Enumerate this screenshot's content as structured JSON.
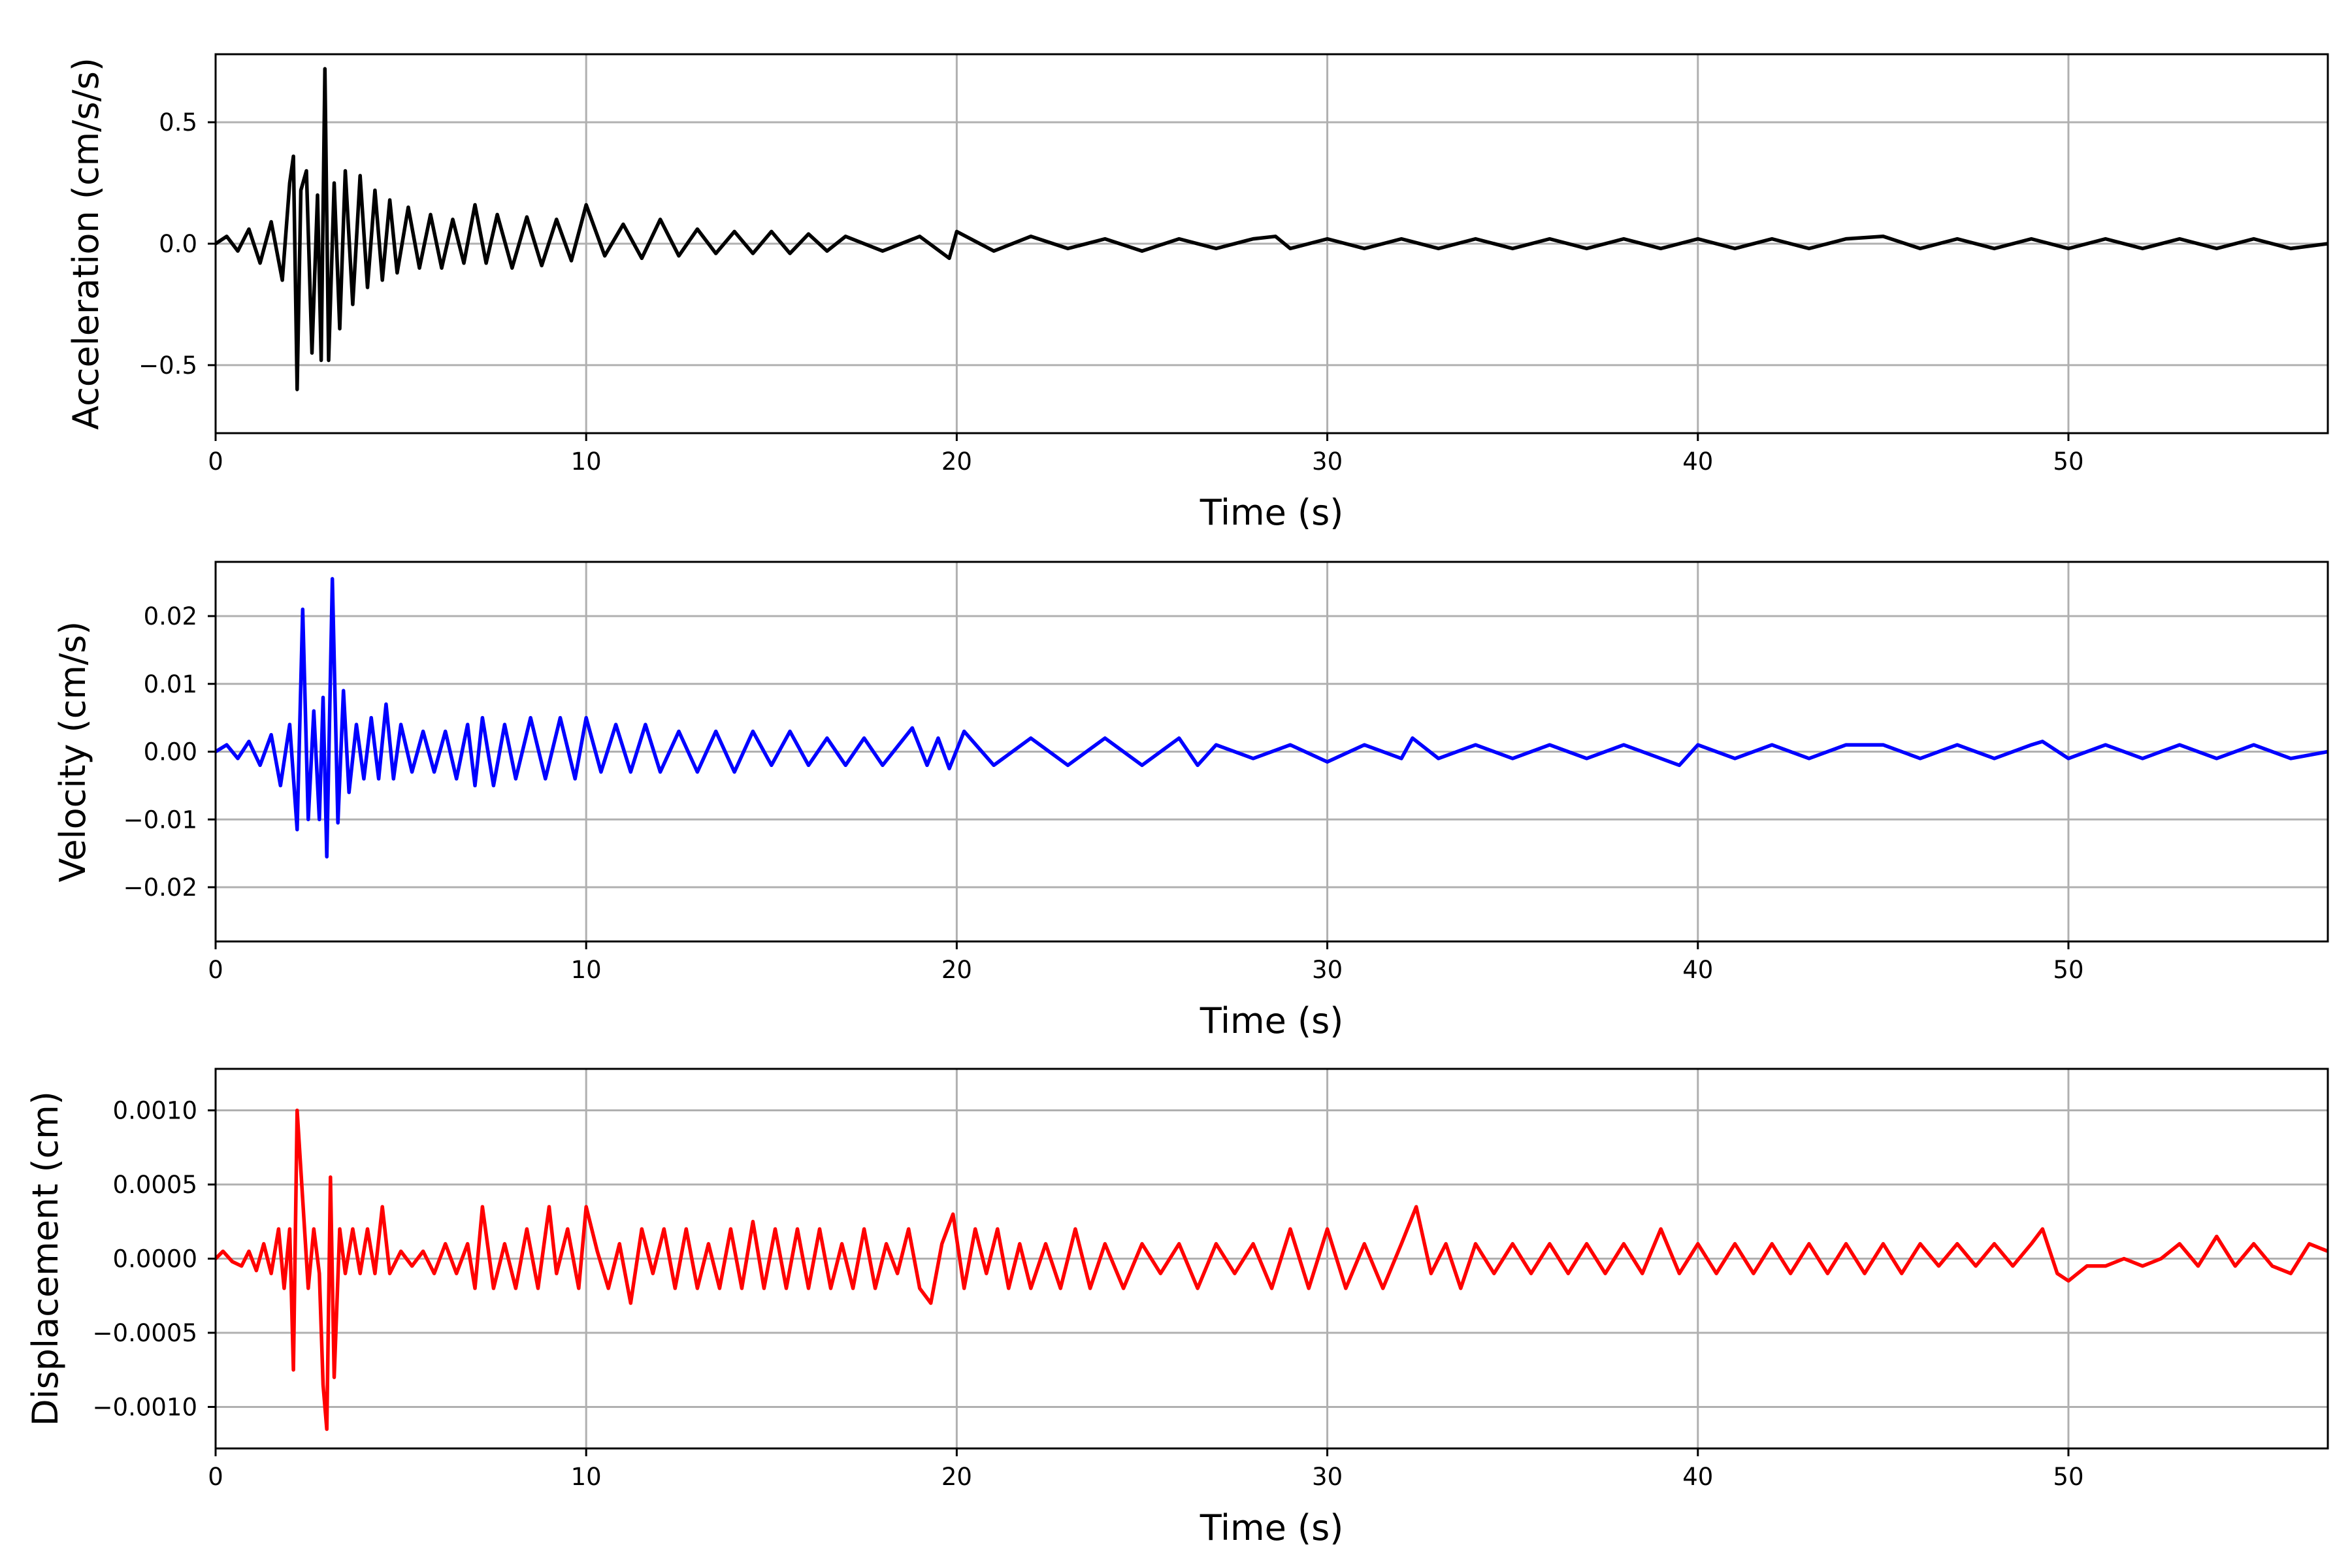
{
  "chart_data": [
    {
      "type": "line",
      "xlabel": "Time (s)",
      "ylabel": "Acceleration (cm/s/s)",
      "xlim": [
        0,
        57
      ],
      "ylim": [
        -0.78,
        0.78
      ],
      "xticks": [
        0,
        10,
        20,
        30,
        40,
        50
      ],
      "xtick_labels": [
        "0",
        "10",
        "20",
        "30",
        "40",
        "50"
      ],
      "yticks": [
        0.5,
        0.0,
        -0.5
      ],
      "ytick_labels": [
        "0.5",
        "0.0",
        "−0.5"
      ],
      "grid": true,
      "series": [
        {
          "color": "#000000",
          "x": [
            0,
            0.3,
            0.6,
            0.9,
            1.2,
            1.5,
            1.8,
            2.0,
            2.1,
            2.2,
            2.3,
            2.45,
            2.6,
            2.75,
            2.85,
            2.95,
            3.05,
            3.2,
            3.35,
            3.5,
            3.7,
            3.9,
            4.1,
            4.3,
            4.5,
            4.7,
            4.9,
            5.2,
            5.5,
            5.8,
            6.1,
            6.4,
            6.7,
            7.0,
            7.3,
            7.6,
            8.0,
            8.4,
            8.8,
            9.2,
            9.6,
            10.0,
            10.5,
            11.0,
            11.5,
            12.0,
            12.5,
            13.0,
            13.5,
            14.0,
            14.5,
            15.0,
            15.5,
            16.0,
            16.5,
            17.0,
            18.0,
            19.0,
            19.8,
            20.0,
            21.0,
            22.0,
            23.0,
            24.0,
            25.0,
            26.0,
            27.0,
            28.0,
            28.6,
            29.0,
            30.0,
            31.0,
            32.0,
            33.0,
            34.0,
            35.0,
            36.0,
            37.0,
            38.0,
            39.0,
            40.0,
            41.0,
            42.0,
            43.0,
            44.0,
            45.0,
            46.0,
            47.0,
            48.0,
            49.0,
            50.0,
            51.0,
            52.0,
            53.0,
            54.0,
            55.0,
            56.0,
            57.0
          ],
          "y": [
            0.0,
            0.03,
            -0.03,
            0.06,
            -0.08,
            0.09,
            -0.15,
            0.25,
            0.36,
            -0.6,
            0.22,
            0.3,
            -0.45,
            0.2,
            -0.48,
            0.72,
            -0.48,
            0.25,
            -0.35,
            0.3,
            -0.25,
            0.28,
            -0.18,
            0.22,
            -0.15,
            0.18,
            -0.12,
            0.15,
            -0.1,
            0.12,
            -0.1,
            0.1,
            -0.08,
            0.16,
            -0.08,
            0.12,
            -0.1,
            0.11,
            -0.09,
            0.1,
            -0.07,
            0.16,
            -0.05,
            0.08,
            -0.06,
            0.1,
            -0.05,
            0.06,
            -0.04,
            0.05,
            -0.04,
            0.05,
            -0.04,
            0.04,
            -0.03,
            0.03,
            -0.03,
            0.03,
            -0.06,
            0.05,
            -0.03,
            0.03,
            -0.02,
            0.02,
            -0.03,
            0.02,
            -0.02,
            0.02,
            0.03,
            -0.02,
            0.02,
            -0.02,
            0.02,
            -0.02,
            0.02,
            -0.02,
            0.02,
            -0.02,
            0.02,
            -0.02,
            0.02,
            -0.02,
            0.02,
            -0.02,
            0.02,
            0.03,
            -0.02,
            0.02,
            -0.02,
            0.02,
            -0.02,
            0.02,
            -0.02,
            0.02,
            -0.02,
            0.02,
            -0.02,
            0.0
          ]
        }
      ]
    },
    {
      "type": "line",
      "xlabel": "Time (s)",
      "ylabel": "Velocity (cm/s)",
      "xlim": [
        0,
        57
      ],
      "ylim": [
        -0.028,
        0.028
      ],
      "xticks": [
        0,
        10,
        20,
        30,
        40,
        50
      ],
      "xtick_labels": [
        "0",
        "10",
        "20",
        "30",
        "40",
        "50"
      ],
      "yticks": [
        0.02,
        0.01,
        0.0,
        -0.01,
        -0.02
      ],
      "ytick_labels": [
        "0.02",
        "0.01",
        "0.00",
        "−0.01",
        "−0.02"
      ],
      "grid": true,
      "series": [
        {
          "color": "#0000ff",
          "x": [
            0,
            0.3,
            0.6,
            0.9,
            1.2,
            1.5,
            1.75,
            2.0,
            2.2,
            2.35,
            2.5,
            2.65,
            2.8,
            2.9,
            3.0,
            3.15,
            3.3,
            3.45,
            3.6,
            3.8,
            4.0,
            4.2,
            4.4,
            4.6,
            4.8,
            5.0,
            5.3,
            5.6,
            5.9,
            6.2,
            6.5,
            6.8,
            7.0,
            7.2,
            7.5,
            7.8,
            8.1,
            8.5,
            8.9,
            9.3,
            9.7,
            10.0,
            10.4,
            10.8,
            11.2,
            11.6,
            12.0,
            12.5,
            13.0,
            13.5,
            14.0,
            14.5,
            15.0,
            15.5,
            16.0,
            16.5,
            17.0,
            17.5,
            18.0,
            18.8,
            19.2,
            19.5,
            19.8,
            20.2,
            21.0,
            22.0,
            23.0,
            24.0,
            25.0,
            26.0,
            26.5,
            27.0,
            28.0,
            29.0,
            30.0,
            31.0,
            32.0,
            32.3,
            33.0,
            34.0,
            35.0,
            36.0,
            37.0,
            38.0,
            39.0,
            39.5,
            40.0,
            41.0,
            42.0,
            43.0,
            44.0,
            45.0,
            46.0,
            47.0,
            48.0,
            49.0,
            49.3,
            50.0,
            51.0,
            52.0,
            53.0,
            54.0,
            55.0,
            56.0,
            57.0
          ],
          "y": [
            0.0,
            0.001,
            -0.001,
            0.0015,
            -0.002,
            0.0025,
            -0.005,
            0.004,
            -0.0115,
            0.021,
            -0.01,
            0.006,
            -0.01,
            0.008,
            -0.0155,
            0.0255,
            -0.0105,
            0.009,
            -0.006,
            0.004,
            -0.004,
            0.005,
            -0.004,
            0.007,
            -0.004,
            0.004,
            -0.003,
            0.003,
            -0.003,
            0.003,
            -0.004,
            0.004,
            -0.005,
            0.005,
            -0.005,
            0.004,
            -0.004,
            0.005,
            -0.004,
            0.005,
            -0.004,
            0.005,
            -0.003,
            0.004,
            -0.003,
            0.004,
            -0.003,
            0.003,
            -0.003,
            0.003,
            -0.003,
            0.003,
            -0.002,
            0.003,
            -0.002,
            0.002,
            -0.002,
            0.002,
            -0.002,
            0.0035,
            -0.002,
            0.002,
            -0.0025,
            0.003,
            -0.002,
            0.002,
            -0.002,
            0.002,
            -0.002,
            0.002,
            -0.002,
            0.001,
            -0.001,
            0.001,
            -0.0015,
            0.001,
            -0.001,
            0.002,
            -0.001,
            0.001,
            -0.001,
            0.001,
            -0.001,
            0.001,
            -0.001,
            -0.002,
            0.001,
            -0.001,
            0.001,
            -0.001,
            0.001,
            0.001,
            -0.001,
            0.001,
            -0.001,
            0.001,
            0.0015,
            -0.001,
            0.001,
            -0.001,
            0.001,
            -0.001,
            0.001,
            -0.001,
            0.0
          ]
        }
      ]
    },
    {
      "type": "line",
      "xlabel": "Time (s)",
      "ylabel": "Displacement (cm)",
      "xlim": [
        0,
        57
      ],
      "ylim": [
        -0.00128,
        0.00128
      ],
      "xticks": [
        0,
        10,
        20,
        30,
        40,
        50
      ],
      "xtick_labels": [
        "0",
        "10",
        "20",
        "30",
        "40",
        "50"
      ],
      "yticks": [
        0.001,
        0.0005,
        0.0,
        -0.0005,
        -0.001
      ],
      "ytick_labels": [
        "0.0010",
        "0.0005",
        "0.0000",
        "−0.0005",
        "−0.0010"
      ],
      "grid": true,
      "series": [
        {
          "color": "#ff0000",
          "x": [
            0,
            0.2,
            0.45,
            0.7,
            0.9,
            1.1,
            1.3,
            1.5,
            1.7,
            1.85,
            2.0,
            2.1,
            2.2,
            2.35,
            2.5,
            2.65,
            2.8,
            2.9,
            3.0,
            3.1,
            3.2,
            3.35,
            3.5,
            3.7,
            3.9,
            4.1,
            4.3,
            4.5,
            4.7,
            5.0,
            5.3,
            5.6,
            5.9,
            6.2,
            6.5,
            6.8,
            7.0,
            7.2,
            7.5,
            7.8,
            8.1,
            8.4,
            8.7,
            9.0,
            9.2,
            9.5,
            9.8,
            10.0,
            10.3,
            10.6,
            10.9,
            11.2,
            11.5,
            11.8,
            12.1,
            12.4,
            12.7,
            13.0,
            13.3,
            13.6,
            13.9,
            14.2,
            14.5,
            14.8,
            15.1,
            15.4,
            15.7,
            16.0,
            16.3,
            16.6,
            16.9,
            17.2,
            17.5,
            17.8,
            18.1,
            18.4,
            18.7,
            19.0,
            19.3,
            19.6,
            19.9,
            20.2,
            20.5,
            20.8,
            21.1,
            21.4,
            21.7,
            22.0,
            22.4,
            22.8,
            23.2,
            23.6,
            24.0,
            24.5,
            25.0,
            25.5,
            26.0,
            26.5,
            27.0,
            27.5,
            28.0,
            28.5,
            29.0,
            29.5,
            30.0,
            30.5,
            31.0,
            31.5,
            32.0,
            32.4,
            32.8,
            33.2,
            33.6,
            34.0,
            34.5,
            35.0,
            35.5,
            36.0,
            36.5,
            37.0,
            37.5,
            38.0,
            38.5,
            39.0,
            39.5,
            40.0,
            40.5,
            41.0,
            41.5,
            42.0,
            42.5,
            43.0,
            43.5,
            44.0,
            44.5,
            45.0,
            45.5,
            46.0,
            46.5,
            47.0,
            47.5,
            48.0,
            48.5,
            49.0,
            49.3,
            49.7,
            50.0,
            50.5,
            51.0,
            51.5,
            52.0,
            52.5,
            53.0,
            53.5,
            54.0,
            54.5,
            55.0,
            55.5,
            56.0,
            56.5,
            57.0
          ],
          "y": [
            0.0,
            5e-05,
            -2e-05,
            -5e-05,
            5e-05,
            -8e-05,
            0.0001,
            -0.0001,
            0.0002,
            -0.0002,
            0.0002,
            -0.00075,
            0.001,
            0.0004,
            -0.0002,
            0.0002,
            -0.0001,
            -0.00085,
            -0.00115,
            0.00055,
            -0.0008,
            0.0002,
            -0.0001,
            0.0002,
            -0.0001,
            0.0002,
            -0.0001,
            0.00035,
            -0.0001,
            5e-05,
            -5e-05,
            5e-05,
            -0.0001,
            0.0001,
            -0.0001,
            0.0001,
            -0.0002,
            0.00035,
            -0.0002,
            0.0001,
            -0.0002,
            0.0002,
            -0.0002,
            0.00035,
            -0.0001,
            0.0002,
            -0.0002,
            0.00035,
            5e-05,
            -0.0002,
            0.0001,
            -0.0003,
            0.0002,
            -0.0001,
            0.0002,
            -0.0002,
            0.0002,
            -0.0002,
            0.0001,
            -0.0002,
            0.0002,
            -0.0002,
            0.00025,
            -0.0002,
            0.0002,
            -0.0002,
            0.0002,
            -0.0002,
            0.0002,
            -0.0002,
            0.0001,
            -0.0002,
            0.0002,
            -0.0002,
            0.0001,
            -0.0001,
            0.0002,
            -0.0002,
            -0.0003,
            0.0001,
            0.0003,
            -0.0002,
            0.0002,
            -0.0001,
            0.0002,
            -0.0002,
            0.0001,
            -0.0002,
            0.0001,
            -0.0002,
            0.0002,
            -0.0002,
            0.0001,
            -0.0002,
            0.0001,
            -0.0001,
            0.0001,
            -0.0002,
            0.0001,
            -0.0001,
            0.0001,
            -0.0002,
            0.0002,
            -0.0002,
            0.0002,
            -0.0002,
            0.0001,
            -0.0002,
            0.0001,
            0.00035,
            -0.0001,
            0.0001,
            -0.0002,
            0.0001,
            -0.0001,
            0.0001,
            -0.0001,
            0.0001,
            -0.0001,
            0.0001,
            -0.0001,
            0.0001,
            -0.0001,
            0.0002,
            -0.0001,
            0.0001,
            -0.0001,
            0.0001,
            -0.0001,
            0.0001,
            -0.0001,
            0.0001,
            -0.0001,
            0.0001,
            -0.0001,
            0.0001,
            -0.0001,
            0.0001,
            -5e-05,
            0.0001,
            -5e-05,
            0.0001,
            -5e-05,
            0.0001,
            0.0002,
            -0.0001,
            -0.00015,
            -5e-05,
            -5e-05,
            0.0,
            -5e-05,
            0.0,
            0.0001,
            -5e-05,
            0.00015,
            -5e-05,
            0.0001,
            -5e-05,
            -0.0001,
            0.0001,
            5e-05
          ]
        }
      ]
    }
  ]
}
